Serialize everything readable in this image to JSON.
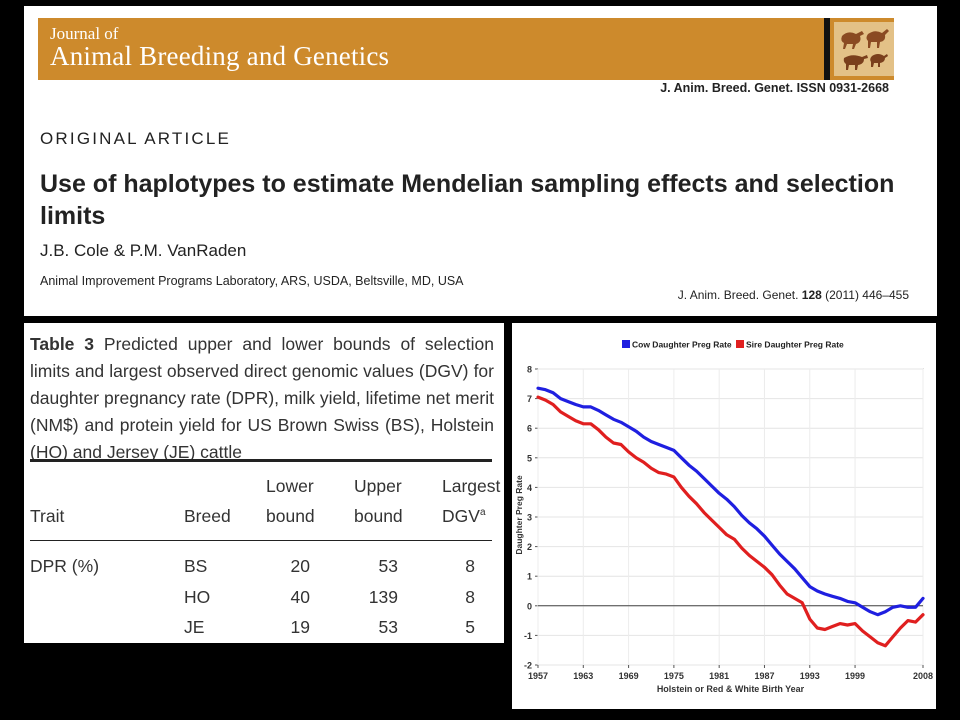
{
  "header": {
    "journal_of": "Journal of",
    "journal_name": "Animal Breeding and Genetics",
    "issn_line": "J. Anim. Breed. Genet. ISSN 0931-2668",
    "article_type": "ORIGINAL ARTICLE",
    "title": "Use of haplotypes to estimate Mendelian sampling effects and selection limits",
    "authors": "J.B. Cole & P.M. VanRaden",
    "affiliation": "Animal Improvement Programs Laboratory, ARS, USDA, Beltsville, MD, USA",
    "citation_prefix": "J. Anim. Breed. Genet.",
    "citation_volume": "128",
    "citation_rest": "(2011) 446–455"
  },
  "table": {
    "label": "Table 3",
    "caption": "Predicted upper and lower bounds of selection limits and largest observed direct genomic values (DGV) for daughter pregnancy rate (DPR), milk yield, lifetime net merit (NM$) and protein yield for US Brown Swiss (BS), Holstein (HO) and Jersey (JE) cattle",
    "headers": {
      "trait": "Trait",
      "breed": "Breed",
      "lower_1": "Lower",
      "lower_2": "bound",
      "upper_1": "Upper",
      "upper_2": "bound",
      "largest_1": "Largest",
      "largest_2": "DGV",
      "largest_sup": "a"
    },
    "rows": [
      {
        "trait": "DPR (%)",
        "breed": "BS",
        "lower": "20",
        "upper": "53",
        "largest": "8"
      },
      {
        "trait": "",
        "breed": "HO",
        "lower": "40",
        "upper": "139",
        "largest": "8"
      },
      {
        "trait": "",
        "breed": "JE",
        "lower": "19",
        "upper": "53",
        "largest": "5"
      }
    ]
  },
  "chart_data": {
    "type": "line",
    "title": "",
    "xlabel": "Holstein or Red & White Birth Year",
    "ylabel": "Daughter Preg Rate",
    "xlim": [
      1957,
      2008
    ],
    "ylim": [
      -2,
      8
    ],
    "x_ticks": [
      "1957",
      "1963",
      "1969",
      "1975",
      "1981",
      "1987",
      "1993",
      "1999",
      "2008"
    ],
    "y_ticks": [
      "-2",
      "-1",
      "0",
      "1",
      "2",
      "3",
      "4",
      "5",
      "6",
      "7",
      "8"
    ],
    "legend_position": "top",
    "grid": true,
    "zero_line": true,
    "series": [
      {
        "name": "Cow Daughter Preg Rate",
        "color": "#1f1fe0",
        "points": [
          [
            1957,
            7.35
          ],
          [
            1958,
            7.3
          ],
          [
            1959,
            7.2
          ],
          [
            1960,
            7.0
          ],
          [
            1961,
            6.9
          ],
          [
            1962,
            6.8
          ],
          [
            1963,
            6.72
          ],
          [
            1964,
            6.72
          ],
          [
            1965,
            6.6
          ],
          [
            1966,
            6.45
          ],
          [
            1967,
            6.3
          ],
          [
            1968,
            6.2
          ],
          [
            1969,
            6.05
          ],
          [
            1970,
            5.9
          ],
          [
            1971,
            5.7
          ],
          [
            1972,
            5.55
          ],
          [
            1973,
            5.45
          ],
          [
            1974,
            5.35
          ],
          [
            1975,
            5.25
          ],
          [
            1976,
            5.0
          ],
          [
            1977,
            4.75
          ],
          [
            1978,
            4.55
          ],
          [
            1979,
            4.3
          ],
          [
            1980,
            4.05
          ],
          [
            1981,
            3.8
          ],
          [
            1982,
            3.6
          ],
          [
            1983,
            3.35
          ],
          [
            1984,
            3.05
          ],
          [
            1985,
            2.8
          ],
          [
            1986,
            2.6
          ],
          [
            1987,
            2.35
          ],
          [
            1988,
            2.05
          ],
          [
            1989,
            1.75
          ],
          [
            1990,
            1.5
          ],
          [
            1991,
            1.25
          ],
          [
            1992,
            0.95
          ],
          [
            1993,
            0.65
          ],
          [
            1994,
            0.5
          ],
          [
            1995,
            0.4
          ],
          [
            1996,
            0.32
          ],
          [
            1997,
            0.25
          ],
          [
            1998,
            0.15
          ],
          [
            1999,
            0.1
          ],
          [
            2000,
            -0.05
          ],
          [
            2001,
            -0.2
          ],
          [
            2002,
            -0.3
          ],
          [
            2003,
            -0.2
          ],
          [
            2004,
            -0.05
          ],
          [
            2005,
            0.0
          ],
          [
            2006,
            -0.05
          ],
          [
            2007,
            -0.05
          ],
          [
            2008,
            0.25
          ]
        ]
      },
      {
        "name": "Sire Daughter Preg Rate",
        "color": "#e01f1f",
        "points": [
          [
            1957,
            7.05
          ],
          [
            1958,
            6.95
          ],
          [
            1959,
            6.8
          ],
          [
            1960,
            6.55
          ],
          [
            1961,
            6.4
          ],
          [
            1962,
            6.25
          ],
          [
            1963,
            6.15
          ],
          [
            1964,
            6.15
          ],
          [
            1965,
            5.95
          ],
          [
            1966,
            5.7
          ],
          [
            1967,
            5.5
          ],
          [
            1968,
            5.45
          ],
          [
            1969,
            5.2
          ],
          [
            1970,
            5.0
          ],
          [
            1971,
            4.85
          ],
          [
            1972,
            4.65
          ],
          [
            1973,
            4.5
          ],
          [
            1974,
            4.45
          ],
          [
            1975,
            4.35
          ],
          [
            1976,
            4.0
          ],
          [
            1977,
            3.7
          ],
          [
            1978,
            3.45
          ],
          [
            1979,
            3.15
          ],
          [
            1980,
            2.9
          ],
          [
            1981,
            2.65
          ],
          [
            1982,
            2.4
          ],
          [
            1983,
            2.25
          ],
          [
            1984,
            1.95
          ],
          [
            1985,
            1.7
          ],
          [
            1986,
            1.5
          ],
          [
            1987,
            1.3
          ],
          [
            1988,
            1.05
          ],
          [
            1989,
            0.7
          ],
          [
            1990,
            0.4
          ],
          [
            1991,
            0.25
          ],
          [
            1992,
            0.1
          ],
          [
            1993,
            -0.45
          ],
          [
            1994,
            -0.75
          ],
          [
            1995,
            -0.8
          ],
          [
            1996,
            -0.7
          ],
          [
            1997,
            -0.6
          ],
          [
            1998,
            -0.65
          ],
          [
            1999,
            -0.6
          ],
          [
            2000,
            -0.85
          ],
          [
            2001,
            -1.05
          ],
          [
            2002,
            -1.25
          ],
          [
            2003,
            -1.35
          ],
          [
            2004,
            -1.05
          ],
          [
            2005,
            -0.75
          ],
          [
            2006,
            -0.5
          ],
          [
            2007,
            -0.55
          ],
          [
            2008,
            -0.3
          ]
        ]
      }
    ]
  }
}
